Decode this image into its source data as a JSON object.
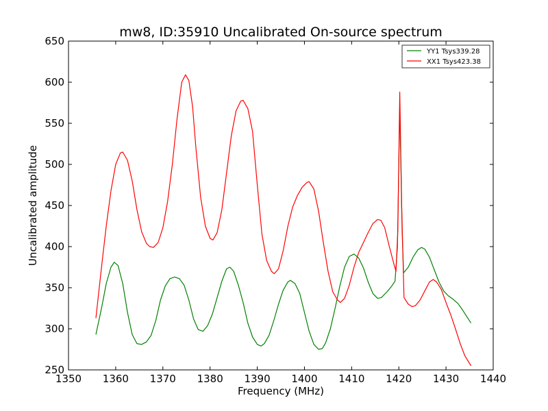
{
  "chart_data": {
    "type": "line",
    "title": "mw8, ID:35910 Uncalibrated On-source spectrum",
    "xlabel": "Frequency (MHz)",
    "ylabel": "Uncalibrated amplitude",
    "xlim": [
      1350,
      1440
    ],
    "ylim": [
      250,
      650
    ],
    "xticks": [
      "1350",
      "1360",
      "1370",
      "1380",
      "1390",
      "1400",
      "1410",
      "1420",
      "1430",
      "1440"
    ],
    "yticks": [
      "250",
      "300",
      "350",
      "400",
      "450",
      "500",
      "550",
      "600",
      "650"
    ],
    "grid": false,
    "legend_position": "top-right",
    "series": [
      {
        "name": "YY1 Tsys339.28",
        "color": "#008000",
        "points": [
          [
            1355.8,
            293
          ],
          [
            1357,
            325
          ],
          [
            1358,
            355
          ],
          [
            1359,
            375
          ],
          [
            1359.7,
            381
          ],
          [
            1360.5,
            377
          ],
          [
            1361.5,
            355
          ],
          [
            1362.5,
            320
          ],
          [
            1363.5,
            293
          ],
          [
            1364.5,
            282
          ],
          [
            1365.5,
            281
          ],
          [
            1366.5,
            284
          ],
          [
            1367.5,
            292
          ],
          [
            1368.5,
            310
          ],
          [
            1369.5,
            335
          ],
          [
            1370.5,
            352
          ],
          [
            1371.5,
            361
          ],
          [
            1372.5,
            363
          ],
          [
            1373.5,
            361
          ],
          [
            1374.5,
            353
          ],
          [
            1375.5,
            335
          ],
          [
            1376.5,
            312
          ],
          [
            1377.5,
            299
          ],
          [
            1378.5,
            297
          ],
          [
            1379.5,
            304
          ],
          [
            1380.5,
            318
          ],
          [
            1381.5,
            338
          ],
          [
            1382.5,
            358
          ],
          [
            1383.5,
            373
          ],
          [
            1384.2,
            375
          ],
          [
            1385,
            370
          ],
          [
            1386,
            353
          ],
          [
            1387,
            332
          ],
          [
            1388,
            307
          ],
          [
            1389,
            290
          ],
          [
            1390,
            281
          ],
          [
            1390.8,
            279
          ],
          [
            1391.5,
            282
          ],
          [
            1392.5,
            292
          ],
          [
            1393.5,
            310
          ],
          [
            1394.5,
            330
          ],
          [
            1395.5,
            347
          ],
          [
            1396.5,
            357
          ],
          [
            1397,
            359
          ],
          [
            1398,
            355
          ],
          [
            1399,
            343
          ],
          [
            1400,
            320
          ],
          [
            1401,
            297
          ],
          [
            1402,
            281
          ],
          [
            1403,
            275
          ],
          [
            1403.8,
            276
          ],
          [
            1404.5,
            283
          ],
          [
            1405.5,
            300
          ],
          [
            1406.5,
            325
          ],
          [
            1407.5,
            352
          ],
          [
            1408.5,
            375
          ],
          [
            1409.5,
            388
          ],
          [
            1410.5,
            391
          ],
          [
            1411.5,
            386
          ],
          [
            1412.5,
            374
          ],
          [
            1413.5,
            357
          ],
          [
            1414.5,
            343
          ],
          [
            1415.5,
            337
          ],
          [
            1416.3,
            338
          ],
          [
            1417.5,
            345
          ],
          [
            1418.5,
            352
          ],
          [
            1419.2,
            358
          ],
          [
            1419.7,
            400
          ],
          [
            1420.2,
            570
          ],
          [
            1420.7,
            420
          ],
          [
            1421,
            368
          ],
          [
            1422,
            375
          ],
          [
            1423,
            387
          ],
          [
            1424,
            396
          ],
          [
            1424.8,
            399
          ],
          [
            1425.5,
            397
          ],
          [
            1426.5,
            387
          ],
          [
            1427.5,
            372
          ],
          [
            1428.5,
            357
          ],
          [
            1429.5,
            346
          ],
          [
            1430.5,
            340
          ],
          [
            1431.5,
            336
          ],
          [
            1432.5,
            331
          ],
          [
            1433.5,
            323
          ],
          [
            1434.5,
            314
          ],
          [
            1435.3,
            307
          ]
        ]
      },
      {
        "name": "XX1 Tsys423.38",
        "color": "#ff0000",
        "points": [
          [
            1355.8,
            313
          ],
          [
            1357,
            375
          ],
          [
            1358,
            425
          ],
          [
            1359,
            468
          ],
          [
            1360,
            500
          ],
          [
            1361,
            514
          ],
          [
            1361.5,
            515
          ],
          [
            1362.5,
            505
          ],
          [
            1363.5,
            480
          ],
          [
            1364.5,
            445
          ],
          [
            1365.5,
            418
          ],
          [
            1366.5,
            404
          ],
          [
            1367.2,
            400
          ],
          [
            1368,
            399
          ],
          [
            1369,
            405
          ],
          [
            1370,
            423
          ],
          [
            1371,
            455
          ],
          [
            1372,
            500
          ],
          [
            1373,
            555
          ],
          [
            1374,
            600
          ],
          [
            1374.8,
            609
          ],
          [
            1375.5,
            602
          ],
          [
            1376.3,
            570
          ],
          [
            1377,
            520
          ],
          [
            1378,
            460
          ],
          [
            1379,
            425
          ],
          [
            1380,
            410
          ],
          [
            1380.6,
            408
          ],
          [
            1381.5,
            417
          ],
          [
            1382.5,
            445
          ],
          [
            1383.5,
            490
          ],
          [
            1384.5,
            535
          ],
          [
            1385.5,
            565
          ],
          [
            1386.5,
            577
          ],
          [
            1387,
            578
          ],
          [
            1388,
            568
          ],
          [
            1389,
            540
          ],
          [
            1390,
            475
          ],
          [
            1391,
            415
          ],
          [
            1392,
            383
          ],
          [
            1393,
            370
          ],
          [
            1393.6,
            367
          ],
          [
            1394.5,
            373
          ],
          [
            1395.5,
            395
          ],
          [
            1396.5,
            425
          ],
          [
            1397.5,
            448
          ],
          [
            1398.5,
            462
          ],
          [
            1399.5,
            472
          ],
          [
            1400.5,
            478
          ],
          [
            1401,
            479
          ],
          [
            1402,
            470
          ],
          [
            1403,
            443
          ],
          [
            1404,
            405
          ],
          [
            1405,
            370
          ],
          [
            1406,
            345
          ],
          [
            1407,
            335
          ],
          [
            1407.6,
            332
          ],
          [
            1408.5,
            337
          ],
          [
            1409.5,
            353
          ],
          [
            1410.5,
            375
          ],
          [
            1411.5,
            393
          ],
          [
            1412.5,
            405
          ],
          [
            1413.5,
            417
          ],
          [
            1414.5,
            428
          ],
          [
            1415.5,
            433
          ],
          [
            1416.2,
            432
          ],
          [
            1417,
            423
          ],
          [
            1418,
            400
          ],
          [
            1419,
            378
          ],
          [
            1419.4,
            370
          ],
          [
            1419.8,
            420
          ],
          [
            1420.2,
            588
          ],
          [
            1420.6,
            450
          ],
          [
            1421.1,
            338
          ],
          [
            1422,
            330
          ],
          [
            1422.8,
            327
          ],
          [
            1423.5,
            328
          ],
          [
            1424.5,
            335
          ],
          [
            1425.5,
            346
          ],
          [
            1426.5,
            357
          ],
          [
            1427.3,
            360
          ],
          [
            1428,
            357
          ],
          [
            1429,
            348
          ],
          [
            1430,
            332
          ],
          [
            1431,
            317
          ],
          [
            1432,
            300
          ],
          [
            1433,
            282
          ],
          [
            1434,
            267
          ],
          [
            1435.3,
            255
          ]
        ]
      }
    ]
  }
}
